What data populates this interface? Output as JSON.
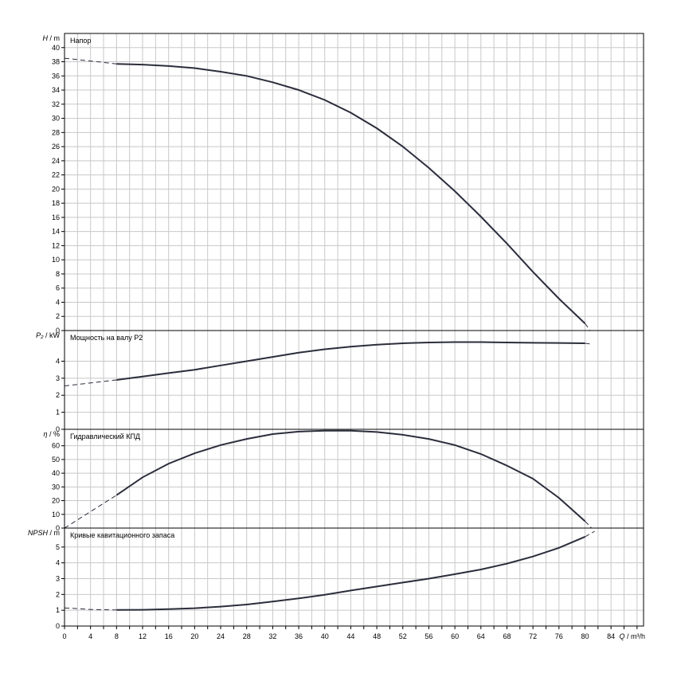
{
  "chart_data": [
    {
      "type": "line",
      "id": "head",
      "title": "Напор",
      "ylabel_sym": "H",
      "ylabel_unit": "/ m",
      "ylim": [
        0,
        42
      ],
      "yticks": [
        0,
        2,
        4,
        6,
        8,
        10,
        12,
        14,
        16,
        18,
        20,
        22,
        24,
        26,
        28,
        30,
        32,
        34,
        36,
        38,
        40
      ],
      "series": [
        {
          "solid": [
            [
              8,
              37.7
            ],
            [
              12,
              37.6
            ],
            [
              16,
              37.4
            ],
            [
              20,
              37.1
            ],
            [
              24,
              36.6
            ],
            [
              28,
              36
            ],
            [
              32,
              35.1
            ],
            [
              36,
              34
            ],
            [
              40,
              32.6
            ],
            [
              44,
              30.8
            ],
            [
              48,
              28.6
            ],
            [
              52,
              26
            ],
            [
              56,
              23
            ],
            [
              60,
              19.7
            ],
            [
              64,
              16.1
            ],
            [
              68,
              12.3
            ],
            [
              72,
              8.3
            ],
            [
              76,
              4.5
            ],
            [
              80,
              1
            ]
          ],
          "dashed_start": [
            [
              0,
              38.5
            ],
            [
              4,
              38.1
            ],
            [
              8,
              37.7
            ]
          ],
          "dashed_end": [
            [
              80,
              1
            ],
            [
              80.8,
              0
            ]
          ]
        }
      ]
    },
    {
      "type": "line",
      "id": "power",
      "title": "Мощность на валу P2",
      "ylabel_sym": "P₂",
      "ylabel_unit": "/ kW",
      "ylim": [
        0,
        5.8
      ],
      "yticks": [
        0,
        1,
        2,
        3,
        4
      ],
      "series": [
        {
          "solid": [
            [
              8,
              2.9
            ],
            [
              12,
              3.1
            ],
            [
              16,
              3.3
            ],
            [
              20,
              3.5
            ],
            [
              24,
              3.75
            ],
            [
              28,
              4
            ],
            [
              32,
              4.25
            ],
            [
              36,
              4.5
            ],
            [
              40,
              4.7
            ],
            [
              44,
              4.85
            ],
            [
              48,
              4.97
            ],
            [
              52,
              5.05
            ],
            [
              56,
              5.1
            ],
            [
              60,
              5.12
            ],
            [
              64,
              5.12
            ],
            [
              68,
              5.1
            ],
            [
              72,
              5.08
            ],
            [
              76,
              5.07
            ],
            [
              80,
              5.05
            ]
          ],
          "dashed_start": [
            [
              0,
              2.55
            ],
            [
              4,
              2.72
            ],
            [
              8,
              2.9
            ]
          ],
          "dashed_end": [
            [
              80,
              5.05
            ],
            [
              81,
              5.0
            ]
          ]
        }
      ]
    },
    {
      "type": "line",
      "id": "efficiency",
      "title": "Гидравлический КПД",
      "ylabel_sym": "η",
      "ylabel_unit": "/ %",
      "ylim": [
        0,
        72
      ],
      "yticks": [
        0,
        10,
        20,
        30,
        40,
        50,
        60
      ],
      "series": [
        {
          "solid": [
            [
              8,
              24
            ],
            [
              12,
              37
            ],
            [
              16,
              47
            ],
            [
              20,
              54.5
            ],
            [
              24,
              60.5
            ],
            [
              28,
              65
            ],
            [
              32,
              68.5
            ],
            [
              36,
              70.3
            ],
            [
              40,
              71
            ],
            [
              44,
              71
            ],
            [
              48,
              70
            ],
            [
              52,
              68
            ],
            [
              56,
              65
            ],
            [
              60,
              60.5
            ],
            [
              64,
              54
            ],
            [
              68,
              45.5
            ],
            [
              72,
              36
            ],
            [
              76,
              22
            ],
            [
              80,
              5
            ]
          ],
          "dashed_start": [
            [
              0,
              0
            ],
            [
              4,
              12
            ],
            [
              8,
              24
            ]
          ],
          "dashed_end": [
            [
              80,
              5
            ],
            [
              81,
              0
            ]
          ]
        }
      ]
    },
    {
      "type": "line",
      "id": "npsh",
      "title": "Кривые кавитационного запаса",
      "ylabel_sym": "NPSH",
      "ylabel_unit": "/ m",
      "ylim": [
        0,
        6.2
      ],
      "yticks": [
        0,
        1,
        2,
        3,
        4,
        5
      ],
      "series": [
        {
          "solid": [
            [
              8,
              1.02
            ],
            [
              12,
              1.03
            ],
            [
              16,
              1.07
            ],
            [
              20,
              1.13
            ],
            [
              24,
              1.23
            ],
            [
              28,
              1.36
            ],
            [
              32,
              1.55
            ],
            [
              36,
              1.75
            ],
            [
              40,
              1.98
            ],
            [
              44,
              2.25
            ],
            [
              48,
              2.5
            ],
            [
              52,
              2.75
            ],
            [
              56,
              3
            ],
            [
              60,
              3.28
            ],
            [
              64,
              3.58
            ],
            [
              68,
              3.95
            ],
            [
              72,
              4.4
            ],
            [
              76,
              4.95
            ],
            [
              80,
              5.65
            ]
          ],
          "dashed_start": [
            [
              0,
              1.15
            ],
            [
              4,
              1.05
            ],
            [
              8,
              1.02
            ]
          ],
          "dashed_end": [
            [
              80,
              5.65
            ],
            [
              81.5,
              6.0
            ]
          ]
        }
      ]
    }
  ],
  "x_axis": {
    "label_sym": "Q",
    "label_unit": "/ m³/h",
    "xlim": [
      0,
      89
    ],
    "xticks": [
      0,
      4,
      8,
      12,
      16,
      20,
      24,
      28,
      32,
      36,
      40,
      44,
      48,
      52,
      56,
      60,
      64,
      68,
      72,
      76,
      80,
      84
    ]
  },
  "colors": {
    "curve": "#2b2d3c",
    "grid": "#c8c8c8",
    "frame": "#000000"
  },
  "grid": true
}
